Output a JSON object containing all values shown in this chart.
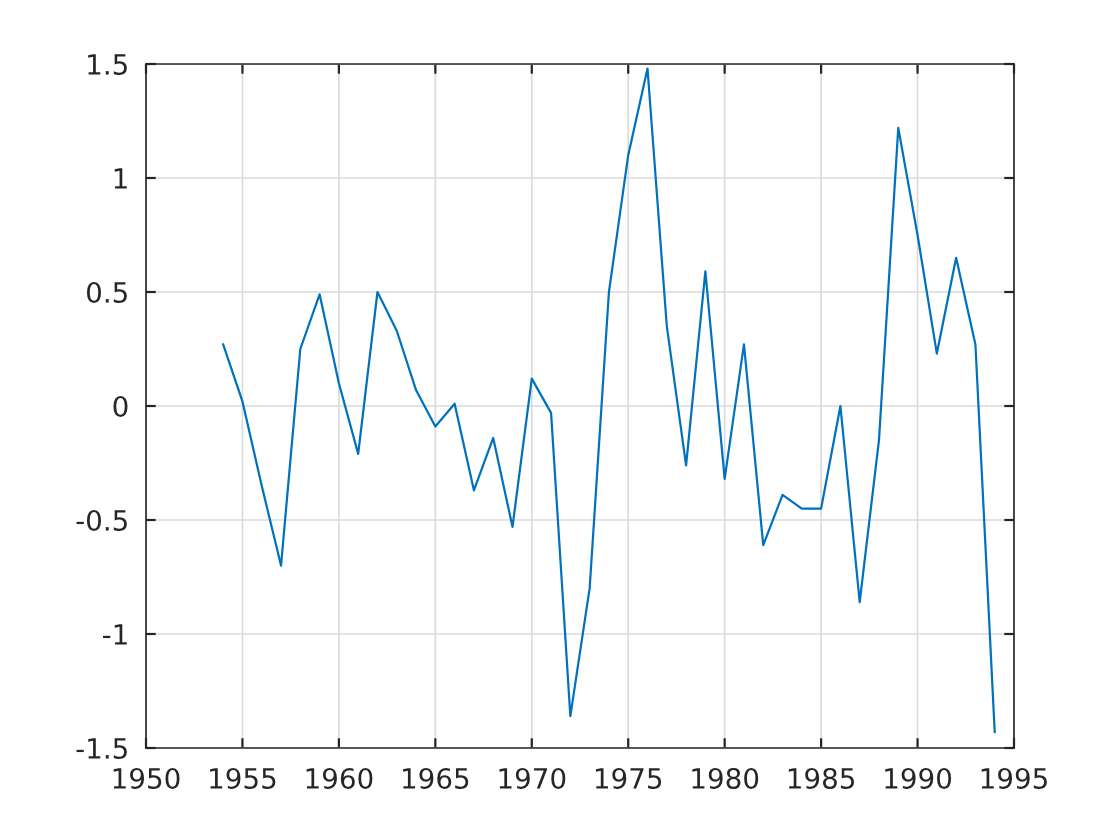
{
  "chart_data": {
    "type": "line",
    "x": [
      1954,
      1955,
      1956,
      1957,
      1958,
      1959,
      1960,
      1961,
      1962,
      1963,
      1964,
      1965,
      1966,
      1967,
      1968,
      1969,
      1970,
      1971,
      1972,
      1973,
      1974,
      1975,
      1976,
      1977,
      1978,
      1979,
      1980,
      1981,
      1982,
      1983,
      1984,
      1985,
      1986,
      1987,
      1988,
      1989,
      1990,
      1991,
      1992,
      1993,
      1994
    ],
    "series": [
      {
        "color": "#0072bd",
        "values": [
          0.27,
          0.02,
          -0.35,
          -0.7,
          0.25,
          0.49,
          0.1,
          -0.21,
          0.5,
          0.33,
          0.07,
          -0.09,
          0.01,
          -0.37,
          -0.14,
          -0.53,
          0.12,
          -0.03,
          -1.36,
          -0.8,
          0.5,
          1.1,
          1.48,
          0.35,
          -0.26,
          0.59,
          -0.32,
          0.27,
          -0.61,
          -0.39,
          -0.45,
          -0.45,
          0.0,
          -0.86,
          -0.15,
          1.22,
          0.75,
          0.23,
          0.65,
          0.27,
          -1.43
        ]
      }
    ],
    "xlim": [
      1950,
      1995
    ],
    "xticks": [
      1950,
      1955,
      1960,
      1965,
      1970,
      1975,
      1980,
      1985,
      1990,
      1995
    ],
    "ylim": [
      -1.5,
      1.5
    ],
    "yticks": [
      -1.5,
      -1,
      -0.5,
      0,
      0.5,
      1,
      1.5
    ],
    "grid": true,
    "marker": "none",
    "line_style": "solid"
  }
}
